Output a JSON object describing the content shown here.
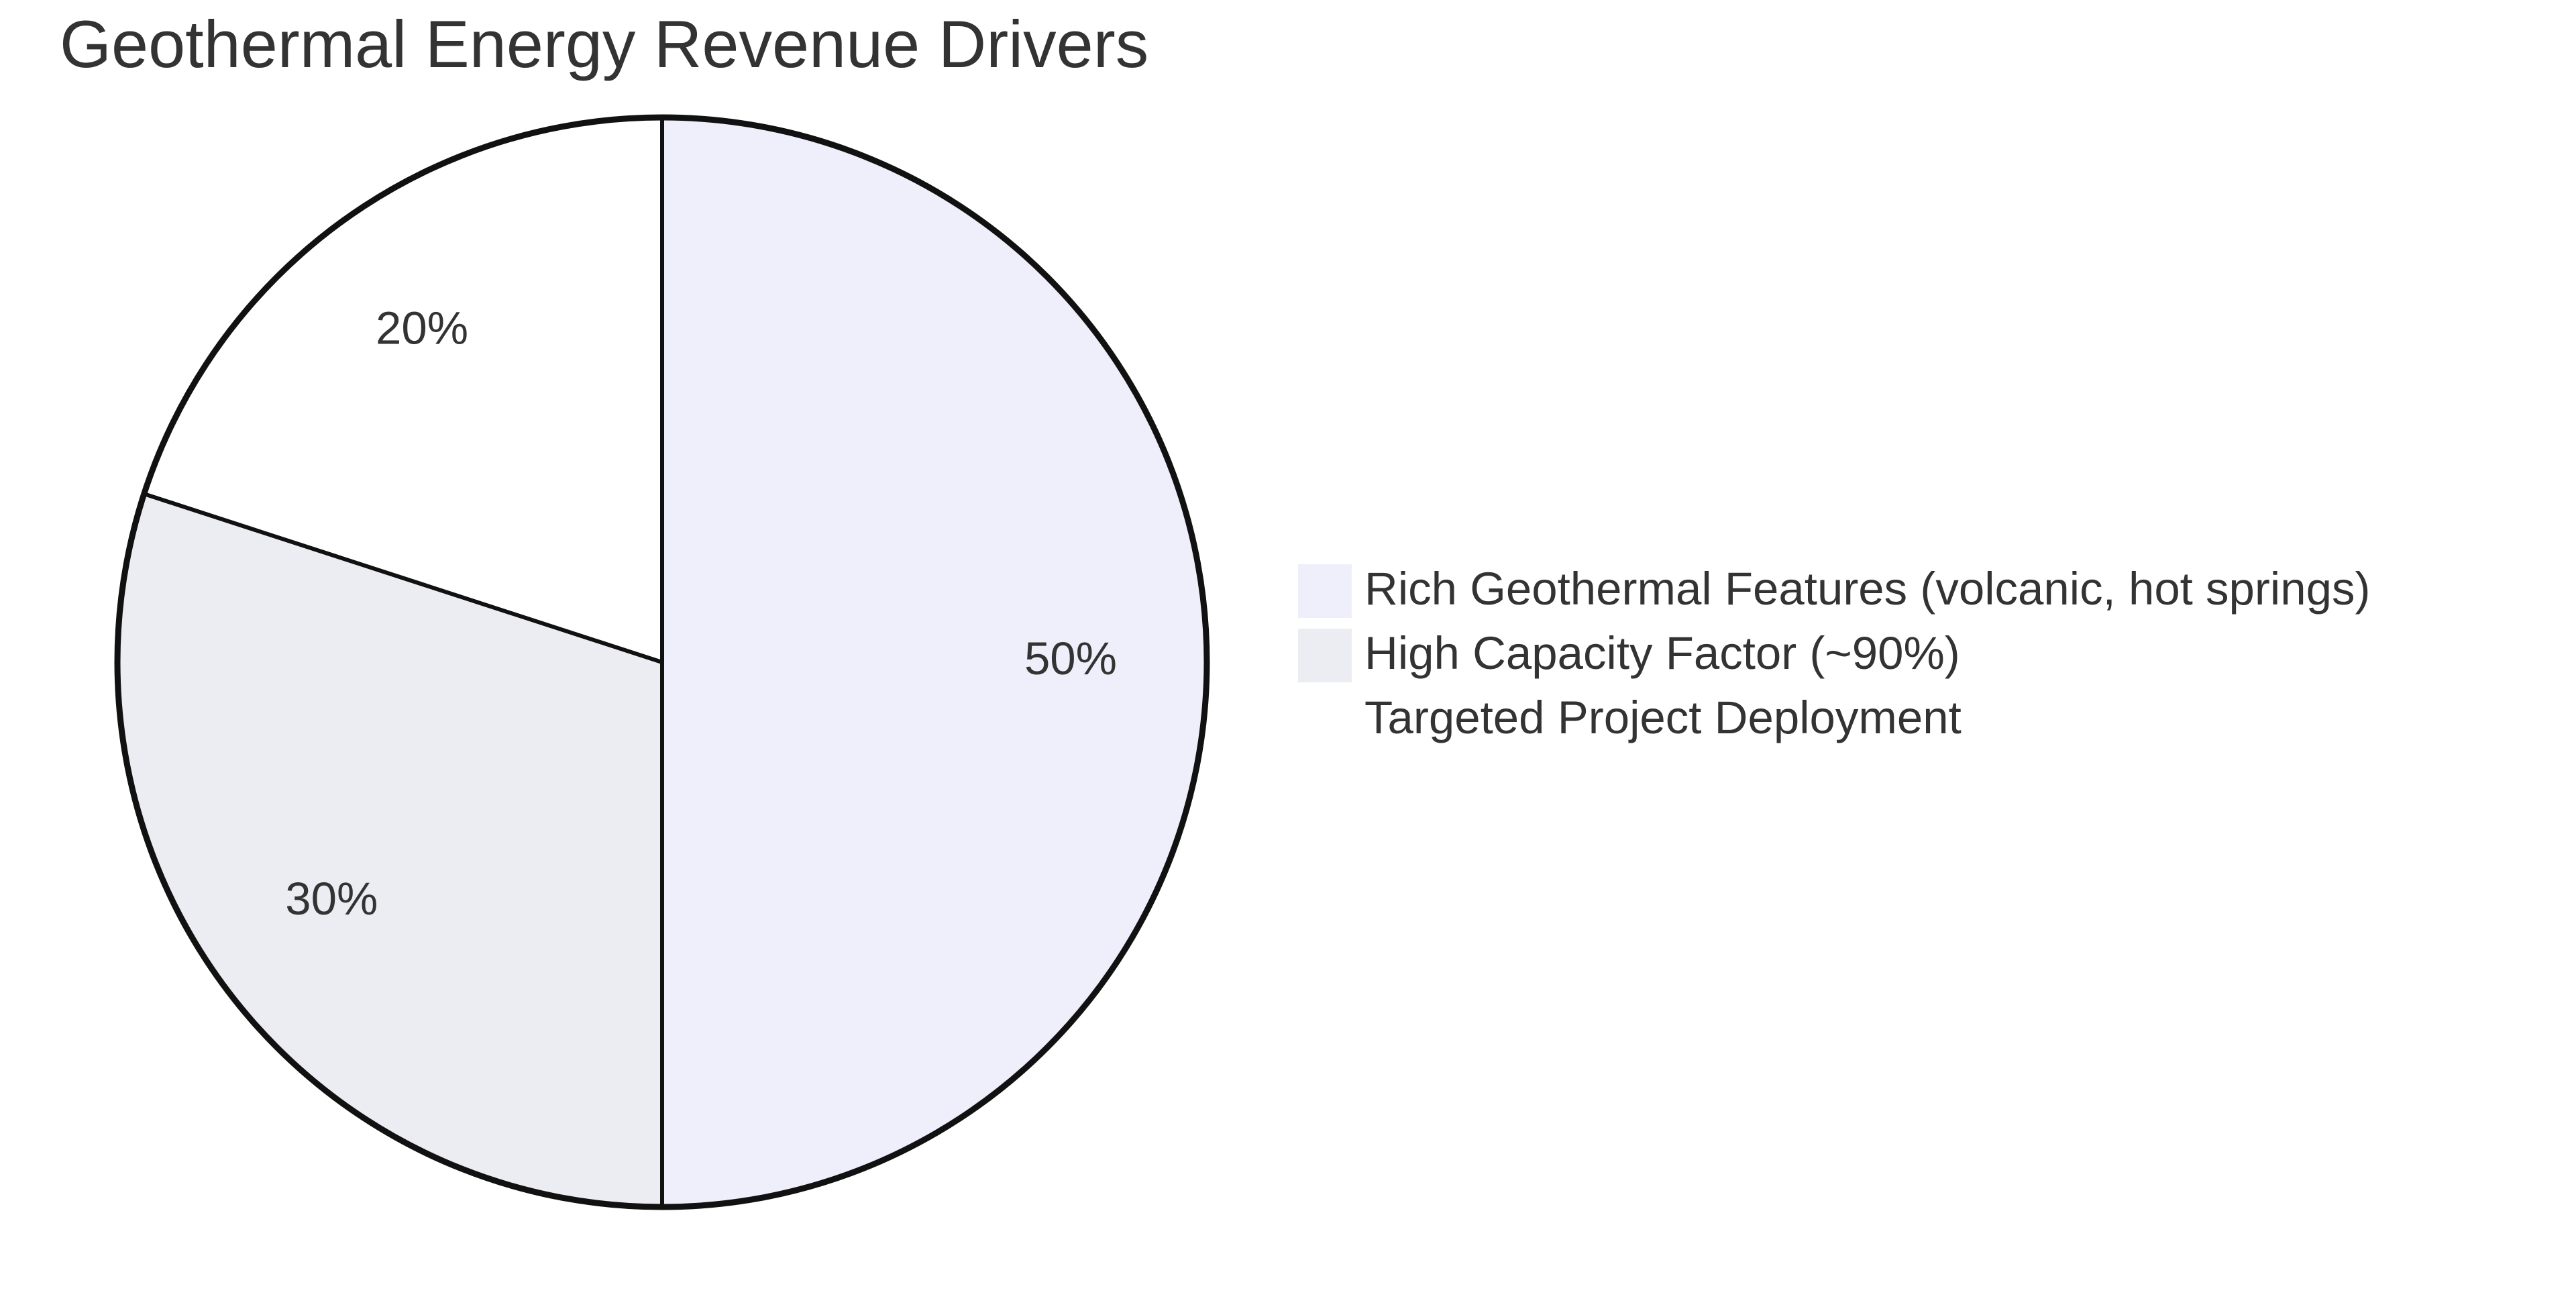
{
  "chart_data": {
    "type": "pie",
    "title": "Geothermal Energy Revenue Drivers",
    "categories": [
      "Rich Geothermal Features (volcanic, hot springs)",
      "High Capacity Factor (~90%)",
      "Targeted Project Deployment"
    ],
    "values": [
      50,
      30,
      20
    ],
    "value_labels": [
      "50%",
      "30%",
      "20%"
    ],
    "colors": [
      "#efeffc",
      "#ececf3",
      "#ffffff"
    ]
  }
}
